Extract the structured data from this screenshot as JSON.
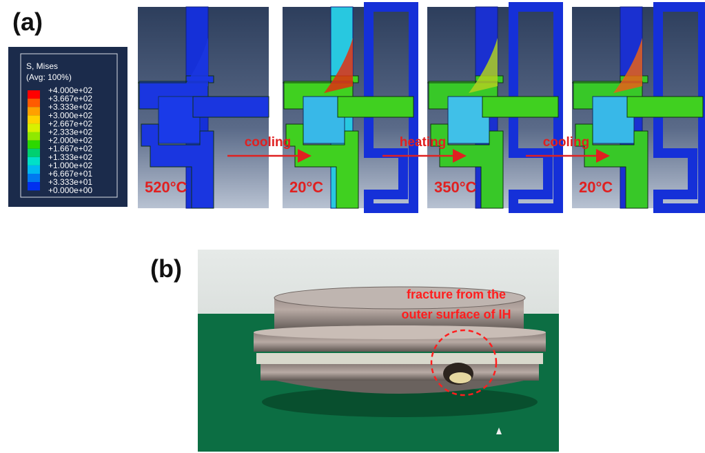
{
  "panel_a": {
    "label": "(a)",
    "legend": {
      "title": "S, Mises",
      "subtitle": "(Avg: 100%)",
      "values": [
        "+4.000e+02",
        "+3.667e+02",
        "+3.333e+02",
        "+3.000e+02",
        "+2.667e+02",
        "+2.333e+02",
        "+2.000e+02",
        "+1.667e+02",
        "+1.333e+02",
        "+1.000e+02",
        "+6.667e+01",
        "+3.333e+01",
        "+0.000e+00"
      ]
    },
    "frames": [
      {
        "temperature": "520°C"
      },
      {
        "temperature": "20°C"
      },
      {
        "temperature": "350°C"
      },
      {
        "temperature": "20°C"
      }
    ],
    "arrows": [
      {
        "label": "cooling"
      },
      {
        "label": "heating"
      },
      {
        "label": "cooling"
      }
    ]
  },
  "panel_b": {
    "label": "(b)",
    "annotation": [
      "fracture from the",
      "outer surface of IH"
    ]
  }
}
